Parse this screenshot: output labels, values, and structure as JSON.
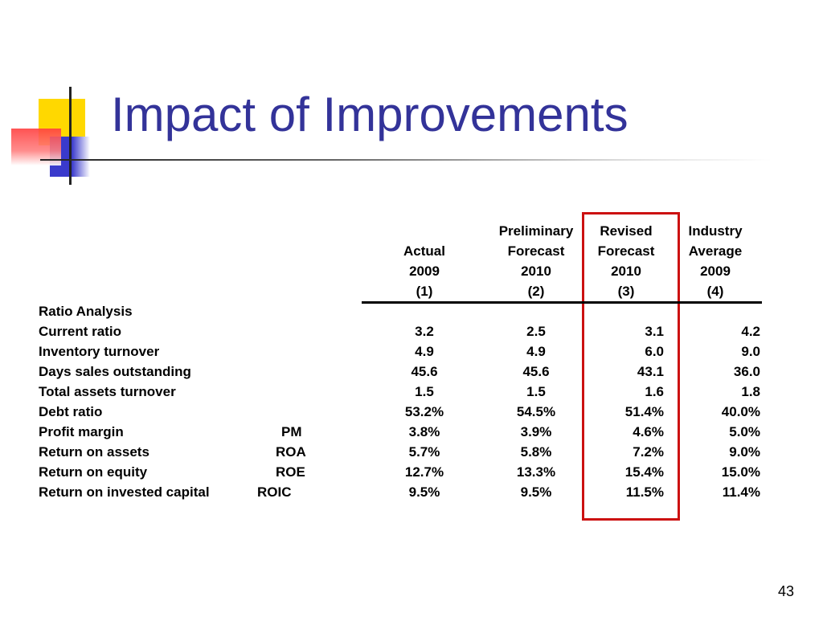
{
  "slide": {
    "title": "Impact of Improvements",
    "page_number": "43"
  },
  "table": {
    "headers": [
      {
        "line1": "",
        "line2": "Actual",
        "line3": "2009",
        "line4": "(1)"
      },
      {
        "line1": "Preliminary",
        "line2": "Forecast",
        "line3": "2010",
        "line4": "(2)"
      },
      {
        "line1": "Revised",
        "line2": "Forecast",
        "line3": "2010",
        "line4": "(3)"
      },
      {
        "line1": "Industry",
        "line2": "Average",
        "line3": "2009",
        "line4": "(4)"
      }
    ],
    "section_label": "Ratio Analysis",
    "rows": [
      {
        "label": "Current ratio",
        "abbr": "",
        "values": [
          "3.2",
          "2.5",
          "3.1",
          "4.2"
        ]
      },
      {
        "label": "Inventory turnover",
        "abbr": "",
        "values": [
          "4.9",
          "4.9",
          "6.0",
          "9.0"
        ]
      },
      {
        "label": "Days sales outstanding",
        "abbr": "",
        "values": [
          "45.6",
          "45.6",
          "43.1",
          "36.0"
        ]
      },
      {
        "label": "Total assets turnover",
        "abbr": "",
        "values": [
          "1.5",
          "1.5",
          "1.6",
          "1.8"
        ]
      },
      {
        "label": "Debt ratio",
        "abbr": "",
        "values": [
          "53.2%",
          "54.5%",
          "51.4%",
          "40.0%"
        ]
      },
      {
        "label": "Profit margin",
        "abbr": "PM",
        "values": [
          "3.8%",
          "3.9%",
          "4.6%",
          "5.0%"
        ]
      },
      {
        "label": "Return on assets",
        "abbr": "ROA",
        "values": [
          "5.7%",
          "5.8%",
          "7.2%",
          "9.0%"
        ]
      },
      {
        "label": "Return on equity",
        "abbr": "ROE",
        "values": [
          "12.7%",
          "13.3%",
          "15.4%",
          "15.0%"
        ]
      },
      {
        "label": "Return on invested capital",
        "abbr": "ROIC",
        "values": [
          "9.5%",
          "9.5%",
          "11.5%",
          "11.4%"
        ]
      }
    ]
  },
  "colors": {
    "title": "#333399",
    "highlight_box": "#cc1111",
    "accent_yellow": "#ffd800",
    "accent_blue": "#3a3acc",
    "accent_red": "#ff4040"
  }
}
